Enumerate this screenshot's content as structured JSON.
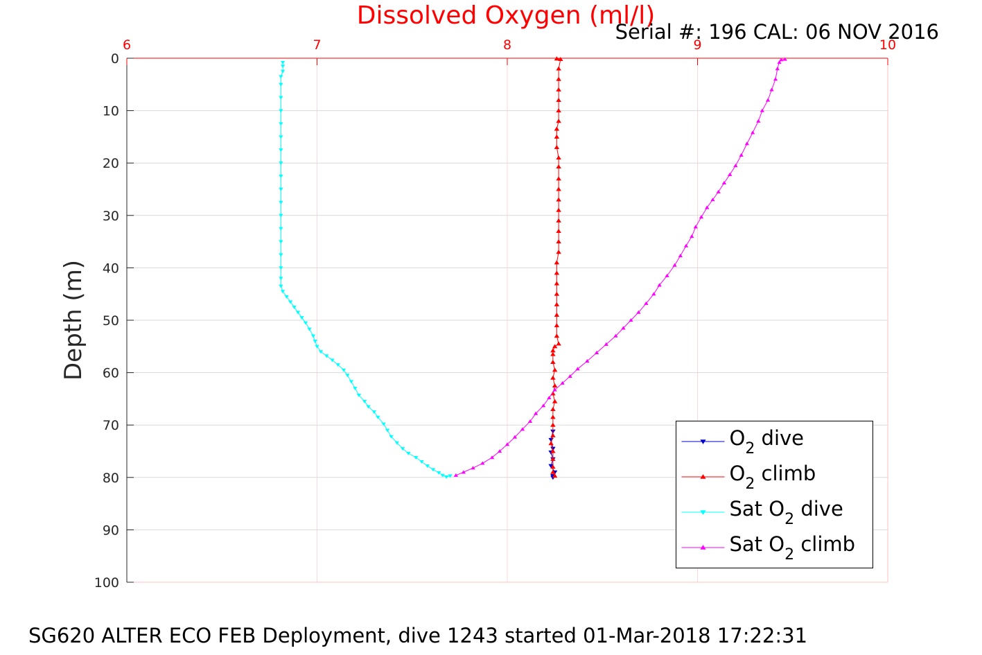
{
  "chart_data": {
    "type": "line",
    "title": "Dissolved Oxygen (ml/l)",
    "subtitle": "Serial #: 196  CAL: 06 NOV 2016",
    "caption": "SG620 ALTER ECO FEB Deployment, dive 1243 started 01-Mar-2018 17:22:31",
    "xlabel": "",
    "ylabel": "Depth (m)",
    "xlim": [
      6,
      10
    ],
    "ylim": [
      0,
      100
    ],
    "y_reversed": true,
    "x_axis_position": "top",
    "grid": true,
    "x_ticks": [
      "6",
      "7",
      "8",
      "9",
      "10"
    ],
    "x_tick_values": [
      6,
      7,
      8,
      9,
      10
    ],
    "y_ticks": [
      "0",
      "10",
      "20",
      "30",
      "40",
      "50",
      "60",
      "70",
      "80",
      "90",
      "100"
    ],
    "y_tick_values": [
      0,
      10,
      20,
      30,
      40,
      50,
      60,
      70,
      80,
      90,
      100
    ],
    "legend_position": "bottom-right",
    "colors": {
      "title": "#ff0000",
      "x_axis": "#ff0000",
      "y_axis": "#000000",
      "o2_dive": "#0000cc",
      "o2_climb": "#ff0000",
      "sat_dive": "#00ffff",
      "sat_climb": "#ff00ff"
    },
    "series": [
      {
        "name": "O2 dive",
        "legend_main": "O",
        "legend_sub": "2",
        "legend_rest": " dive",
        "color": "#0000cc",
        "marker": "triangle-down",
        "points": [
          [
            8.24,
            71.2
          ],
          [
            8.23,
            72.8
          ],
          [
            8.24,
            74.5
          ],
          [
            8.23,
            75.2
          ],
          [
            8.24,
            76.5
          ],
          [
            8.23,
            77.8
          ],
          [
            8.25,
            79.0
          ],
          [
            8.24,
            79.7
          ],
          [
            8.24,
            80.0
          ]
        ]
      },
      {
        "name": "O2 climb",
        "legend_main": "O",
        "legend_sub": "2",
        "legend_rest": " climb",
        "color": "#ff0000",
        "marker": "triangle-up",
        "points": [
          [
            8.25,
            79.7
          ],
          [
            8.24,
            79.0
          ],
          [
            8.24,
            78.0
          ],
          [
            8.24,
            76.5
          ],
          [
            8.24,
            75.0
          ],
          [
            8.23,
            73.5
          ],
          [
            8.24,
            72.0
          ],
          [
            8.24,
            70.0
          ],
          [
            8.24,
            68.5
          ],
          [
            8.24,
            67.0
          ],
          [
            8.25,
            65.5
          ],
          [
            8.24,
            64.0
          ],
          [
            8.25,
            62.5
          ],
          [
            8.24,
            61.0
          ],
          [
            8.25,
            59.5
          ],
          [
            8.24,
            58.0
          ],
          [
            8.24,
            56.5
          ],
          [
            8.24,
            55.8
          ],
          [
            8.25,
            55.0
          ],
          [
            8.27,
            54.5
          ],
          [
            8.26,
            53.0
          ],
          [
            8.26,
            51.0
          ],
          [
            8.26,
            49.0
          ],
          [
            8.26,
            47.0
          ],
          [
            8.26,
            45.0
          ],
          [
            8.26,
            43.0
          ],
          [
            8.26,
            41.0
          ],
          [
            8.26,
            39.0
          ],
          [
            8.27,
            37.0
          ],
          [
            8.27,
            35.0
          ],
          [
            8.27,
            33.0
          ],
          [
            8.27,
            31.0
          ],
          [
            8.27,
            29.0
          ],
          [
            8.27,
            27.0
          ],
          [
            8.27,
            25.0
          ],
          [
            8.27,
            23.0
          ],
          [
            8.27,
            20.7
          ],
          [
            8.27,
            19.0
          ],
          [
            8.26,
            17.0
          ],
          [
            8.26,
            15.0
          ],
          [
            8.26,
            13.5
          ],
          [
            8.27,
            12.0
          ],
          [
            8.27,
            10.0
          ],
          [
            8.27,
            8.0
          ],
          [
            8.27,
            6.0
          ],
          [
            8.27,
            4.0
          ],
          [
            8.27,
            2.0
          ],
          [
            8.28,
            0.2
          ],
          [
            8.26,
            0.1
          ]
        ]
      },
      {
        "name": "Sat O2 dive",
        "legend_main": "Sat O",
        "legend_sub": "2",
        "legend_rest": " dive",
        "color": "#00ffff",
        "marker": "triangle-down",
        "points": [
          [
            6.82,
            0.8
          ],
          [
            6.82,
            1.5
          ],
          [
            6.82,
            2.5
          ],
          [
            6.81,
            3.5
          ],
          [
            6.81,
            5
          ],
          [
            6.81,
            7.5
          ],
          [
            6.81,
            10
          ],
          [
            6.81,
            12.5
          ],
          [
            6.81,
            15
          ],
          [
            6.81,
            17.5
          ],
          [
            6.81,
            20
          ],
          [
            6.81,
            22.5
          ],
          [
            6.81,
            25
          ],
          [
            6.81,
            27.5
          ],
          [
            6.81,
            30
          ],
          [
            6.81,
            32.5
          ],
          [
            6.81,
            35
          ],
          [
            6.81,
            37.5
          ],
          [
            6.81,
            40
          ],
          [
            6.81,
            42
          ],
          [
            6.81,
            43.5
          ],
          [
            6.82,
            44.5
          ],
          [
            6.84,
            45.5
          ],
          [
            6.86,
            46.5
          ],
          [
            6.88,
            47.5
          ],
          [
            6.9,
            48.5
          ],
          [
            6.92,
            49.5
          ],
          [
            6.94,
            50.5
          ],
          [
            6.96,
            51.7
          ],
          [
            6.98,
            53.0
          ],
          [
            6.99,
            54.0
          ],
          [
            7.0,
            55.0
          ],
          [
            7.02,
            56.0
          ],
          [
            7.05,
            56.8
          ],
          [
            7.08,
            57.6
          ],
          [
            7.11,
            58.5
          ],
          [
            7.14,
            59.5
          ],
          [
            7.16,
            60.5
          ],
          [
            7.18,
            61.7
          ],
          [
            7.2,
            63.0
          ],
          [
            7.22,
            64.3
          ],
          [
            7.25,
            65.5
          ],
          [
            7.27,
            66.5
          ],
          [
            7.3,
            67.5
          ],
          [
            7.32,
            68.5
          ],
          [
            7.35,
            69.8
          ],
          [
            7.37,
            71.0
          ],
          [
            7.39,
            72.2
          ],
          [
            7.42,
            73.4
          ],
          [
            7.45,
            74.5
          ],
          [
            7.48,
            75.4
          ],
          [
            7.52,
            76.2
          ],
          [
            7.55,
            77.0
          ],
          [
            7.58,
            77.8
          ],
          [
            7.61,
            78.5
          ],
          [
            7.64,
            79.1
          ],
          [
            7.66,
            79.6
          ],
          [
            7.68,
            79.9
          ],
          [
            7.7,
            79.7
          ]
        ]
      },
      {
        "name": "Sat O2 climb",
        "legend_main": "Sat O",
        "legend_sub": "2",
        "legend_rest": " climb",
        "color": "#ff00ff",
        "marker": "triangle-up",
        "points": [
          [
            7.73,
            79.6
          ],
          [
            7.77,
            79.0
          ],
          [
            7.82,
            78.2
          ],
          [
            7.87,
            77.3
          ],
          [
            7.92,
            76.2
          ],
          [
            7.96,
            75.0
          ],
          [
            8.0,
            73.7
          ],
          [
            8.04,
            72.3
          ],
          [
            8.08,
            70.8
          ],
          [
            8.12,
            69.3
          ],
          [
            8.15,
            67.8
          ],
          [
            8.19,
            66.3
          ],
          [
            8.22,
            64.8
          ],
          [
            8.25,
            63.3
          ],
          [
            8.29,
            62.0
          ],
          [
            8.33,
            60.7
          ],
          [
            8.37,
            59.3
          ],
          [
            8.42,
            57.8
          ],
          [
            8.47,
            56.2
          ],
          [
            8.52,
            54.6
          ],
          [
            8.57,
            53.0
          ],
          [
            8.61,
            51.5
          ],
          [
            8.65,
            50.0
          ],
          [
            8.69,
            48.5
          ],
          [
            8.73,
            46.8
          ],
          [
            8.77,
            45.0
          ],
          [
            8.8,
            43.3
          ],
          [
            8.84,
            41.5
          ],
          [
            8.88,
            39.5
          ],
          [
            8.91,
            37.7
          ],
          [
            8.94,
            35.8
          ],
          [
            8.97,
            34.0
          ],
          [
            8.99,
            32.2
          ],
          [
            9.02,
            30.3
          ],
          [
            9.05,
            28.5
          ],
          [
            9.08,
            27.0
          ],
          [
            9.11,
            25.5
          ],
          [
            9.14,
            23.8
          ],
          [
            9.17,
            22.2
          ],
          [
            9.2,
            20.5
          ],
          [
            9.23,
            18.5
          ],
          [
            9.26,
            16.3
          ],
          [
            9.29,
            14.2
          ],
          [
            9.32,
            12.0
          ],
          [
            9.34,
            10.0
          ],
          [
            9.37,
            8.0
          ],
          [
            9.39,
            6.0
          ],
          [
            9.41,
            4.0
          ],
          [
            9.42,
            2.0
          ],
          [
            9.43,
            0.8
          ],
          [
            9.44,
            0.3
          ],
          [
            9.46,
            0.2
          ]
        ]
      }
    ]
  }
}
